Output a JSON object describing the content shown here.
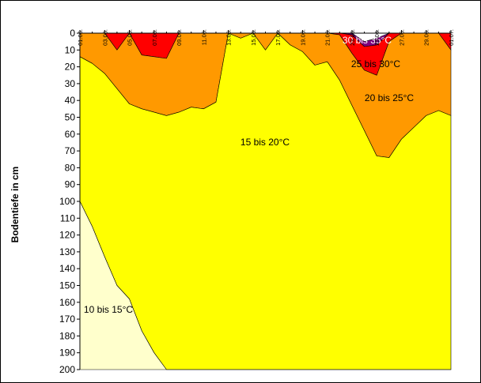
{
  "chart_data": {
    "type": "area",
    "title": "",
    "xlabel": "",
    "ylabel": "Bodentiefe in cm",
    "ylim": [
      0,
      200
    ],
    "y_inverted": true,
    "y_ticks": [
      0,
      10,
      20,
      30,
      40,
      50,
      60,
      70,
      80,
      90,
      100,
      110,
      120,
      130,
      140,
      150,
      160,
      170,
      180,
      190,
      200
    ],
    "x_tick_labels": [
      "01.06.",
      "03.06.",
      "05.06.",
      "07.06.",
      "09.06.",
      "11.06.",
      "13.06.",
      "15.06.",
      "17.06.",
      "19.06.",
      "21.06.",
      "23.06.",
      "25.06.",
      "27.06.",
      "29.06.",
      "01.07."
    ],
    "days": [
      "01.06.",
      "02.06.",
      "03.06.",
      "04.06.",
      "05.06.",
      "06.06.",
      "07.06.",
      "08.06.",
      "09.06.",
      "10.06.",
      "11.06.",
      "12.06.",
      "13.06.",
      "14.06.",
      "15.06.",
      "16.06.",
      "17.06.",
      "18.06.",
      "19.06.",
      "20.06.",
      "21.06.",
      "22.06.",
      "23.06.",
      "24.06.",
      "25.06.",
      "26.06.",
      "27.06.",
      "28.06.",
      "29.06.",
      "30.06.",
      "01.07."
    ],
    "boundaries": [
      {
        "name": "35°C",
        "depths": [
          0,
          0,
          0,
          0,
          0,
          0,
          0,
          0,
          0,
          0,
          0,
          0,
          0,
          0,
          0,
          0,
          0,
          0,
          0,
          0,
          0,
          0,
          0,
          5,
          3,
          0,
          0,
          0,
          0,
          0,
          0
        ]
      },
      {
        "name": "30°C",
        "depths": [
          0,
          0,
          0,
          0,
          0,
          0,
          0,
          0,
          0,
          0,
          0,
          0,
          0,
          0,
          0,
          0,
          0,
          0,
          0,
          0,
          0,
          0,
          1,
          8,
          7,
          0,
          0,
          0,
          0,
          0,
          0
        ]
      },
      {
        "name": "25°C",
        "depths": [
          0,
          0,
          0,
          10,
          0,
          13,
          14,
          15,
          0,
          0,
          0,
          0,
          0,
          0,
          0,
          0,
          0,
          0,
          0,
          0,
          0,
          1,
          12,
          22,
          25,
          5,
          0,
          0,
          0,
          0,
          10
        ]
      },
      {
        "name": "20°C",
        "depths": [
          14,
          18,
          24,
          33,
          42,
          45,
          47,
          49,
          47,
          44,
          45,
          41,
          0,
          3,
          0,
          10,
          0,
          7,
          11,
          19,
          17,
          28,
          43,
          58,
          73,
          74,
          63,
          56,
          49,
          46,
          49
        ]
      },
      {
        "name": "15°C",
        "depths": [
          100,
          115,
          133,
          150,
          158,
          177,
          190,
          200,
          200,
          200,
          200,
          200,
          200,
          200,
          200,
          200,
          200,
          200,
          200,
          200,
          200,
          200,
          200,
          200,
          200,
          200,
          200,
          200,
          200,
          200,
          200
        ]
      }
    ],
    "bands": [
      {
        "label": "30 bis 35°C",
        "color": "#800080",
        "upper": "35°C",
        "lower": "30°C"
      },
      {
        "label": "25 bis 30°C",
        "color": "#ff0000",
        "upper": "30°C",
        "lower": "25°C"
      },
      {
        "label": "20 bis 25°C",
        "color": "#ff9900",
        "upper": "25°C",
        "lower": "20°C"
      },
      {
        "label": "15 bis 20°C",
        "color": "#ffff00",
        "upper": "20°C",
        "lower": "15°C"
      },
      {
        "label": "10 bis 15°C",
        "color": "#ffffcc",
        "upper": "15°C",
        "lower": "bottom"
      }
    ]
  }
}
